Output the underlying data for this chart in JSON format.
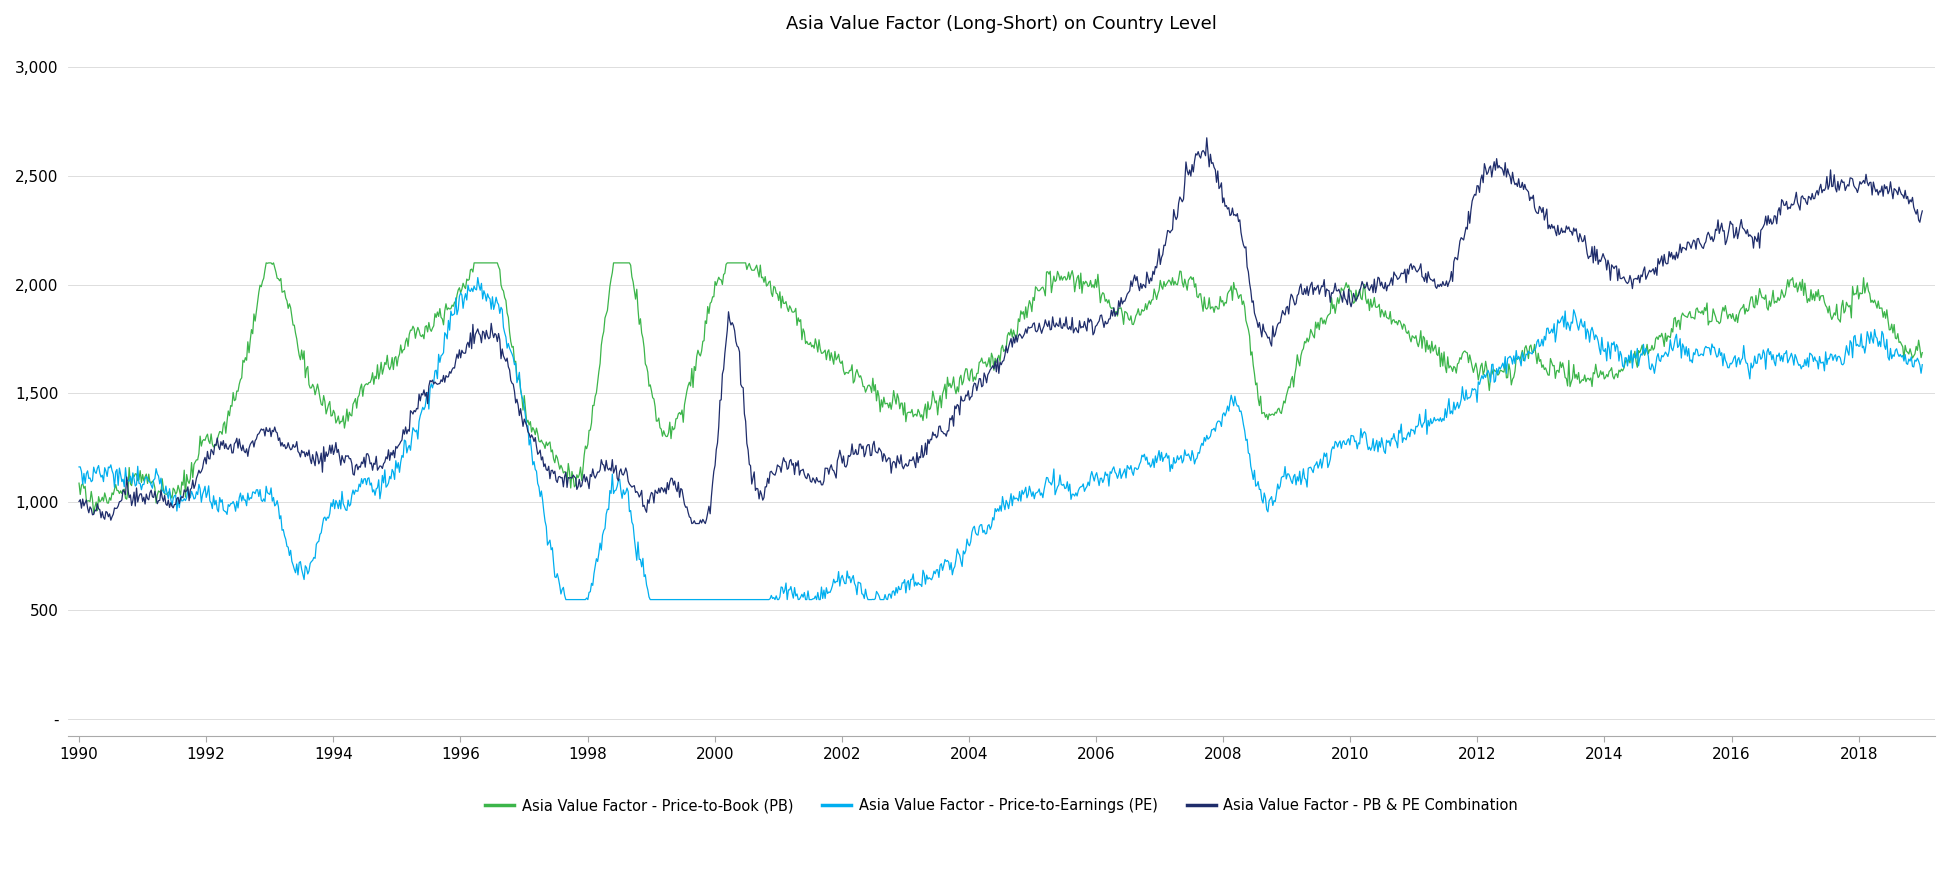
{
  "title": "Asia Value Factor (Long-Short) on Country Level",
  "title_fontsize": 13,
  "yticks": [
    0,
    500,
    1000,
    1500,
    2000,
    2500,
    3000
  ],
  "ytick_labels": [
    "-",
    "500",
    "1,000",
    "1,500",
    "2,000",
    "2,500",
    "3,000"
  ],
  "xtick_years": [
    1990,
    1992,
    1994,
    1996,
    1998,
    2000,
    2002,
    2004,
    2006,
    2008,
    2010,
    2012,
    2014,
    2016,
    2018
  ],
  "ylim": [
    -80,
    3100
  ],
  "xlim_start": 1989.83,
  "xlim_end": 2019.2,
  "color_pb": "#3CB54A",
  "color_pe": "#00AEEF",
  "color_combo": "#1F2D6B",
  "legend_labels": [
    "Asia Value Factor - Price-to-Book (PB)",
    "Asia Value Factor - Price-to-Earnings (PE)",
    "Asia Value Factor - PB & PE Combination"
  ],
  "linewidth": 0.9,
  "bg_color": "#FFFFFF",
  "grid_color": "#D8D8D8"
}
